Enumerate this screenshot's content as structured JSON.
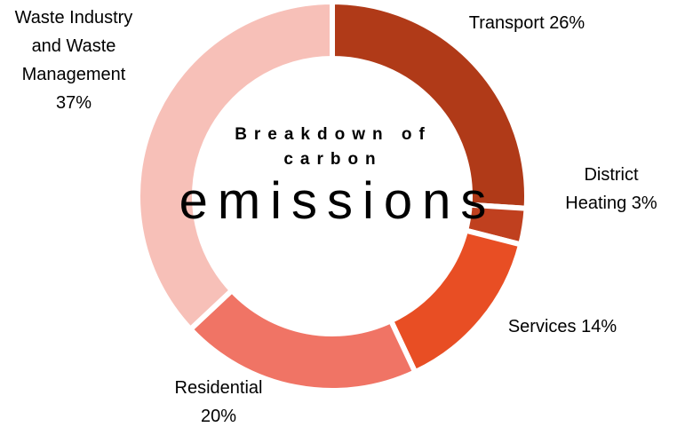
{
  "chart_data": {
    "type": "pie",
    "donut": true,
    "title": "Breakdown of carbon",
    "subtitle": "emissions",
    "categories": [
      "Transport",
      "District Heating",
      "Services",
      "Residential",
      "Waste Industry and Waste Management"
    ],
    "values": [
      26,
      3,
      14,
      20,
      37
    ],
    "value_labels": [
      "26%",
      "3%",
      "14%",
      "20%",
      "37%"
    ],
    "colors": [
      "#b03a18",
      "#c0401f",
      "#e84e24",
      "#f07465",
      "#f7c0b8"
    ]
  }
}
